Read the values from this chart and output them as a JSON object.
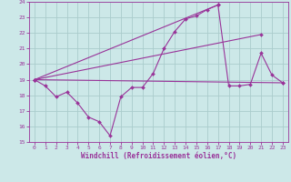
{
  "xlabel": "Windchill (Refroidissement éolien,°C)",
  "xlim": [
    -0.5,
    23.5
  ],
  "ylim": [
    15,
    24
  ],
  "yticks": [
    15,
    16,
    17,
    18,
    19,
    20,
    21,
    22,
    23,
    24
  ],
  "xticks": [
    0,
    1,
    2,
    3,
    4,
    5,
    6,
    7,
    8,
    9,
    10,
    11,
    12,
    13,
    14,
    15,
    16,
    17,
    18,
    19,
    20,
    21,
    22,
    23
  ],
  "bg_color": "#cce8e8",
  "grid_color": "#aacccc",
  "line_color": "#993399",
  "main_line": {
    "x": [
      0,
      1,
      2,
      3,
      4,
      5,
      6,
      7,
      8,
      9,
      10,
      11,
      12,
      13,
      14,
      15,
      16,
      17,
      18,
      19,
      20,
      21,
      22,
      23
    ],
    "y": [
      19.0,
      18.6,
      17.9,
      18.2,
      17.5,
      16.6,
      16.3,
      15.4,
      17.9,
      18.5,
      18.5,
      19.4,
      21.0,
      22.1,
      22.9,
      23.1,
      23.5,
      23.8,
      18.6,
      18.6,
      18.7,
      20.7,
      19.3,
      18.8
    ]
  },
  "trend_lines": [
    {
      "x": [
        0,
        23
      ],
      "y": [
        19.0,
        18.8
      ]
    },
    {
      "x": [
        0,
        21
      ],
      "y": [
        19.0,
        21.9
      ]
    },
    {
      "x": [
        0,
        17
      ],
      "y": [
        19.0,
        23.8
      ]
    }
  ]
}
